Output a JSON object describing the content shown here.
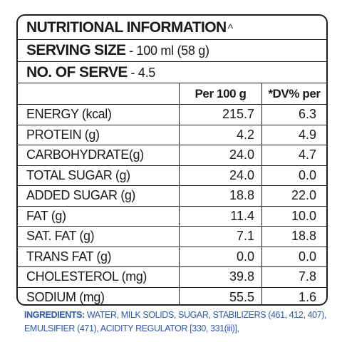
{
  "panel": {
    "title": "NUTRITIONAL INFORMATION",
    "title_mark": "^",
    "serving_size_label": "SERVING SIZE",
    "serving_size_value": " - 100 ml (58 g)",
    "no_of_serve_label": "NO. OF SERVE",
    "no_of_serve_value": " - 4.5"
  },
  "table": {
    "columns": [
      "",
      "Per 100 g",
      "*DV% per"
    ],
    "rows": [
      {
        "name": "ENERGY (kcal)",
        "per100": "215.7",
        "dv": "6.3"
      },
      {
        "name": "PROTEIN (g)",
        "per100": "4.2",
        "dv": "4.9"
      },
      {
        "name": "CARBOHYDRATE(g)",
        "per100": "24.0",
        "dv": "4.7"
      },
      {
        "name": "TOTAL SUGAR (g)",
        "per100": "24.0",
        "dv": "0.0"
      },
      {
        "name": "ADDED SUGAR (g)",
        "per100": "18.8",
        "dv": "22.0"
      },
      {
        "name": "FAT (g)",
        "per100": "11.4",
        "dv": "10.0"
      },
      {
        "name": "SAT. FAT (g)",
        "per100": "7.1",
        "dv": "18.8"
      },
      {
        "name": "TRANS FAT (g)",
        "per100": "0.0",
        "dv": "0.0"
      },
      {
        "name": "CHOLESTEROL (mg)",
        "per100": "39.8",
        "dv": "7.8"
      },
      {
        "name": "SODIUM (mg)",
        "per100": "55.5",
        "dv": "1.6"
      }
    ]
  },
  "ingredients": {
    "label": "INGREDIENTS:",
    "line1": " WATER, MILK SOLIDS, SUGAR, STABILIZERS (461, 412, 407),",
    "line2": "EMULSIFIER (471), ACIDITY REGULATOR [330, 331(iii)],"
  },
  "colors": {
    "border": "#1f1f1f",
    "ingredients_text": "#2e5aa8"
  }
}
